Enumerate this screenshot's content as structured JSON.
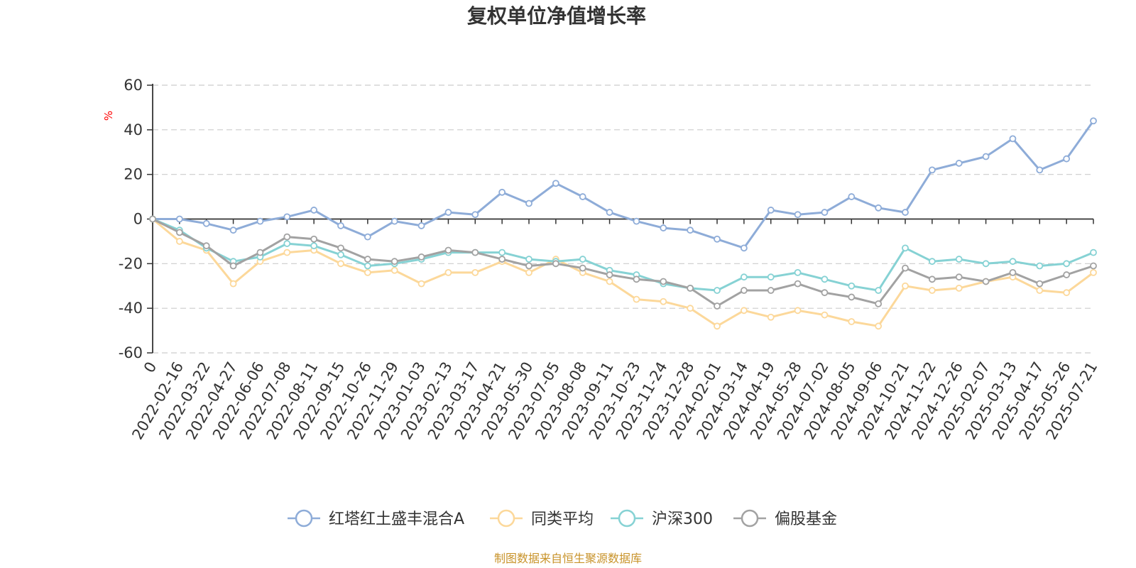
{
  "chart_data": {
    "type": "line",
    "title": "复权单位净值增长率",
    "y_unit": "%",
    "ylim": [
      -60,
      60
    ],
    "y_ticks": [
      60,
      40,
      20,
      0,
      -20,
      -40,
      -60
    ],
    "x_tick_labels": [
      "0",
      "2022-02-16",
      "2022-03-22",
      "2022-04-27",
      "2022-06-06",
      "2022-07-08",
      "2022-08-11",
      "2022-09-15",
      "2022-10-26",
      "2022-11-29",
      "2023-01-03",
      "2023-02-13",
      "2023-03-17",
      "2023-04-21",
      "2023-05-30",
      "2023-07-05",
      "2023-08-08",
      "2023-09-11",
      "2023-10-23",
      "2023-11-24",
      "2023-12-28",
      "2024-02-01",
      "2024-03-14",
      "2024-04-19",
      "2024-05-28",
      "2024-07-02",
      "2024-08-05",
      "2024-09-06",
      "2024-10-21",
      "2024-11-22",
      "2024-12-26",
      "2025-02-07",
      "2025-03-13",
      "2025-04-17",
      "2025-05-26",
      "2025-07-21"
    ],
    "grid": "horizontal-dashed",
    "legend_position": "bottom",
    "series": [
      {
        "name": "红塔红土盛丰混合A",
        "color": "#8eacd8",
        "values": [
          0,
          0,
          -2,
          -5,
          -1,
          1,
          4,
          -3,
          -8,
          -1,
          -3,
          3,
          2,
          12,
          7,
          16,
          10,
          3,
          -1,
          -4,
          -5,
          -9,
          -13,
          4,
          2,
          3,
          10,
          5,
          3,
          22,
          25,
          28,
          36,
          22,
          27,
          44
        ]
      },
      {
        "name": "同类平均",
        "color": "#fcd89a",
        "values": [
          0,
          -10,
          -14,
          -29,
          -19,
          -15,
          -14,
          -20,
          -24,
          -23,
          -29,
          -24,
          -24,
          -19,
          -24,
          -18,
          -24,
          -28,
          -36,
          -37,
          -40,
          -48,
          -41,
          -44,
          -41,
          -43,
          -46,
          -48,
          -30,
          -32,
          -31,
          -28,
          -26,
          -32,
          -33,
          -24
        ]
      },
      {
        "name": "沪深300",
        "color": "#86d2d4",
        "values": [
          0,
          -5,
          -13,
          -19,
          -17,
          -11,
          -12,
          -16,
          -21,
          -20,
          -18,
          -15,
          -15,
          -15,
          -18,
          -19,
          -18,
          -23,
          -25,
          -29,
          -31,
          -32,
          -26,
          -26,
          -24,
          -27,
          -30,
          -32,
          -13,
          -19,
          -18,
          -20,
          -19,
          -21,
          -20,
          -15
        ]
      },
      {
        "name": "偏股基金",
        "color": "#a2a2a2",
        "values": [
          0,
          -6,
          -12,
          -21,
          -15,
          -8,
          -9,
          -13,
          -18,
          -19,
          -17,
          -14,
          -15,
          -18,
          -21,
          -20,
          -22,
          -25,
          -27,
          -28,
          -31,
          -39,
          -32,
          -32,
          -29,
          -33,
          -35,
          -38,
          -22,
          -27,
          -26,
          -28,
          -24,
          -29,
          -25,
          -21
        ]
      }
    ]
  },
  "footer": {
    "source": "制图数据来自恒生聚源数据库"
  }
}
